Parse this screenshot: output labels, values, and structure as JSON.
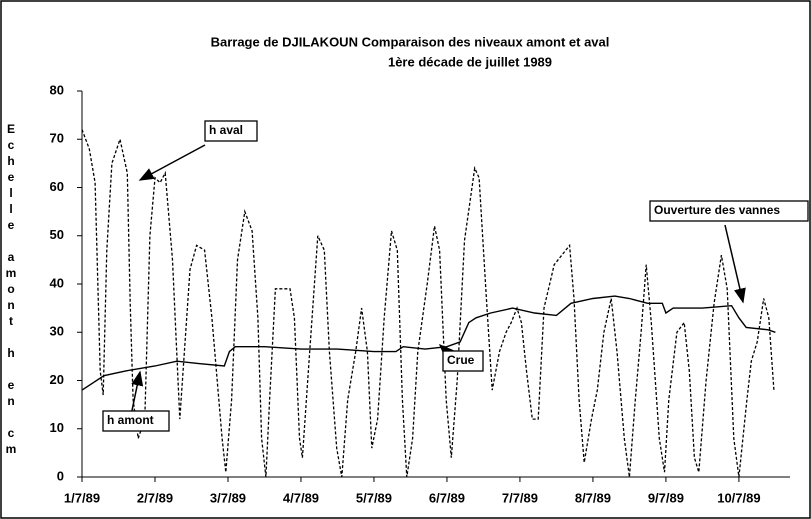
{
  "chart_data": {
    "type": "line",
    "title": "Barrage de DJILAKOUN    Comparaison des niveaux amont et aval",
    "subtitle": "1ère décade de juillet 1989",
    "y_label": "Echelle amont h en cm",
    "xlim": [
      0,
      9.7
    ],
    "ylim": [
      0,
      80
    ],
    "xticks": [
      {
        "value": 0,
        "label": "1/7/89"
      },
      {
        "value": 1,
        "label": "2/7/89"
      },
      {
        "value": 2,
        "label": "3/7/89"
      },
      {
        "value": 3,
        "label": "4/7/89"
      },
      {
        "value": 4,
        "label": "5/7/89"
      },
      {
        "value": 5,
        "label": "6/7/89"
      },
      {
        "value": 6,
        "label": "7/7/89"
      },
      {
        "value": 7,
        "label": "8/7/89"
      },
      {
        "value": 8,
        "label": "9/7/89"
      },
      {
        "value": 9,
        "label": "10/7/89"
      }
    ],
    "yticks": [
      0,
      10,
      20,
      30,
      40,
      50,
      60,
      70,
      80
    ],
    "series": [
      {
        "name": "h aval",
        "color": "#000000",
        "dashed": true,
        "x": [
          0,
          0.1,
          0.18,
          0.25,
          0.29,
          0.34,
          0.41,
          0.52,
          0.62,
          0.66,
          0.7,
          0.77,
          0.86,
          0.93,
          1.0,
          1.07,
          1.14,
          1.24,
          1.34,
          1.48,
          1.57,
          1.68,
          1.78,
          1.92,
          1.97,
          2.05,
          2.13,
          2.23,
          2.33,
          2.41,
          2.46,
          2.52,
          2.57,
          2.65,
          2.75,
          2.85,
          2.91,
          2.98,
          3.02,
          3.12,
          3.23,
          3.32,
          3.39,
          3.49,
          3.56,
          3.64,
          3.75,
          3.83,
          3.91,
          3.97,
          4.05,
          4.14,
          4.24,
          4.32,
          4.39,
          4.45,
          4.53,
          4.6,
          4.73,
          4.83,
          4.9,
          4.99,
          5.06,
          5.14,
          5.24,
          5.38,
          5.44,
          5.54,
          5.62,
          5.72,
          5.81,
          5.88,
          5.96,
          6.02,
          6.09,
          6.17,
          6.25,
          6.33,
          6.47,
          6.68,
          6.74,
          6.81,
          6.88,
          6.98,
          7.06,
          7.15,
          7.25,
          7.33,
          7.43,
          7.5,
          7.58,
          7.66,
          7.73,
          7.8,
          7.91,
          7.98,
          8.04,
          8.15,
          8.25,
          8.32,
          8.39,
          8.45,
          8.55,
          8.66,
          8.76,
          8.84,
          8.93,
          9.0,
          9.11,
          9.17,
          9.25,
          9.34,
          9.41,
          9.48
        ],
        "values": [
          72,
          68,
          61,
          22,
          17,
          47,
          65,
          70,
          63,
          36,
          16,
          8,
          12,
          50,
          62,
          61,
          63,
          45,
          12,
          43,
          48,
          47,
          33,
          8,
          1,
          16,
          45,
          55,
          51,
          33,
          8,
          0,
          16,
          39,
          39,
          39,
          33,
          8,
          4,
          26,
          50,
          47,
          26,
          6,
          0,
          16,
          26,
          35,
          26,
          6,
          12,
          33,
          51,
          47,
          16,
          0,
          8,
          26,
          40,
          52,
          47,
          16,
          4,
          20,
          49,
          64,
          62,
          37,
          18,
          26,
          30,
          32,
          35,
          32,
          22,
          12,
          12,
          35,
          44,
          48,
          37,
          16,
          3,
          12,
          18,
          30,
          37,
          26,
          8,
          0,
          16,
          30,
          44,
          32,
          8,
          1,
          16,
          30,
          32,
          22,
          4,
          1,
          20,
          36,
          46,
          39,
          8,
          0,
          16,
          24,
          28,
          37,
          33,
          18
        ]
      },
      {
        "name": "h amont",
        "color": "#000000",
        "dashed": false,
        "x": [
          0,
          0.3,
          0.6,
          1.0,
          1.3,
          1.6,
          1.95,
          2.02,
          2.1,
          2.5,
          3.0,
          3.5,
          4.0,
          4.3,
          4.4,
          4.7,
          5.0,
          5.18,
          5.3,
          5.4,
          5.6,
          5.9,
          6.2,
          6.5,
          6.7,
          7.0,
          7.3,
          7.5,
          7.75,
          7.95,
          8.0,
          8.1,
          8.5,
          8.9,
          9.0,
          9.1,
          9.4,
          9.5
        ],
        "values": [
          18,
          21,
          22,
          23,
          24,
          23.5,
          23,
          26,
          27,
          27,
          26.5,
          26.5,
          26,
          26,
          27,
          26.5,
          27,
          28,
          32,
          33,
          34,
          35,
          34,
          33.5,
          36,
          37,
          37.5,
          37,
          36,
          36,
          34,
          35,
          35,
          35.5,
          33,
          31,
          30.5,
          30
        ]
      }
    ],
    "annotations": [
      "h aval",
      "h amont",
      "Crue",
      "Ouverture des vannes"
    ]
  }
}
